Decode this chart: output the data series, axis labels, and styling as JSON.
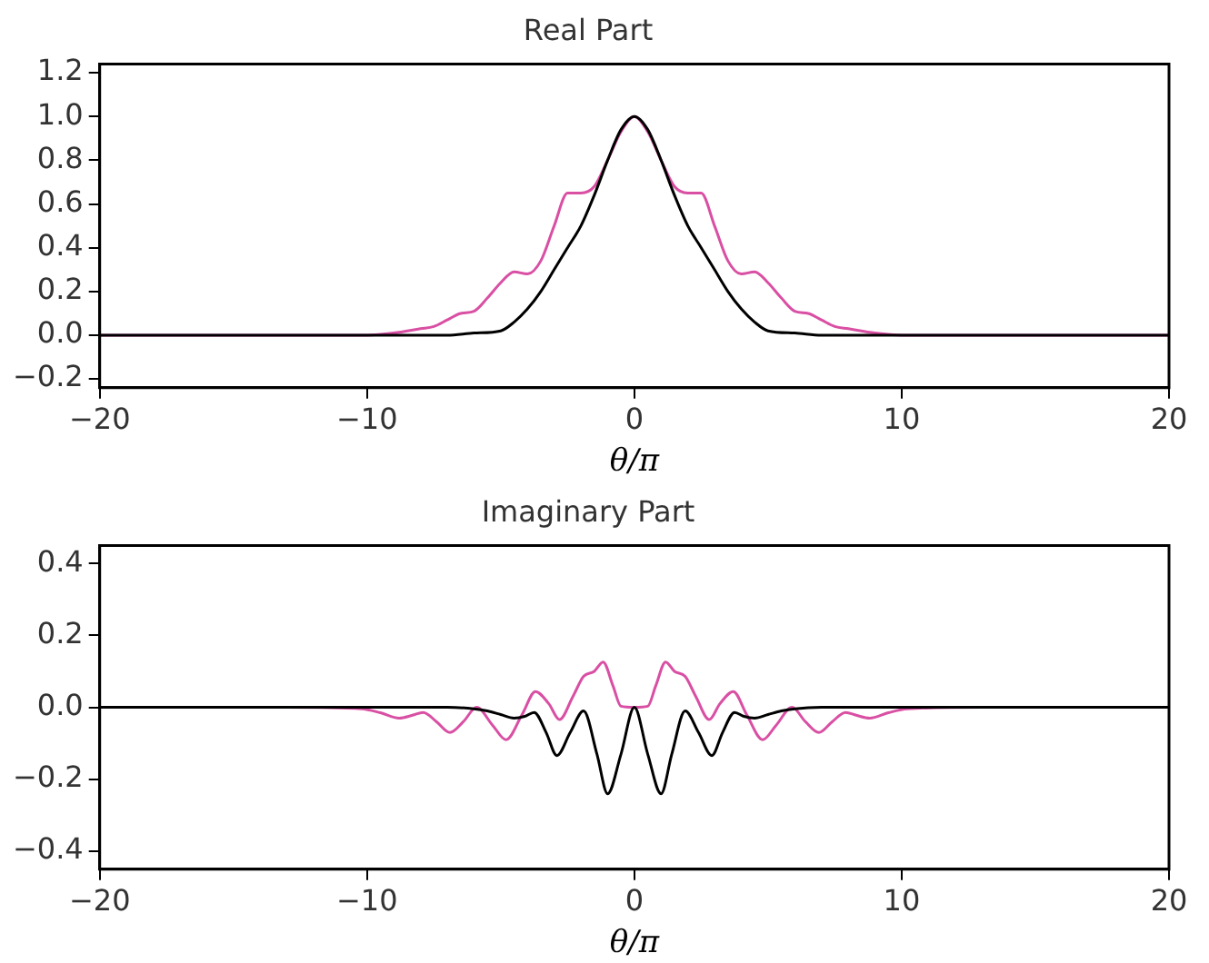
{
  "chart_data": [
    {
      "type": "line",
      "title": "Real Part",
      "xlabel": "θ/π",
      "xlim": [
        -20,
        20
      ],
      "xticks": [
        -20,
        -10,
        0,
        10,
        20
      ],
      "ylim": [
        -0.24,
        1.24
      ],
      "yticks": [
        {
          "value": -0.2,
          "label": "−0.2"
        },
        {
          "value": 0,
          "label": "0.0"
        },
        {
          "value": 0.2,
          "label": "0.2"
        },
        {
          "value": 0.4,
          "label": "0.4"
        },
        {
          "value": 0.6,
          "label": "0.6"
        },
        {
          "value": 0.8,
          "label": "0.8"
        },
        {
          "value": 1,
          "label": "1.0"
        },
        {
          "value": 1.2,
          "label": "1.2"
        }
      ],
      "grid": false,
      "legend": false,
      "marker": "none",
      "line_style": "solid",
      "series": [
        {
          "color": "#000000",
          "x": [
            -20,
            -7,
            -6,
            -5,
            -4.5,
            -4,
            -3.5,
            -3,
            -2.5,
            -2,
            -1.5,
            -1,
            -0.5,
            0,
            0.5,
            1,
            1.5,
            2,
            2.5,
            3,
            3.5,
            4,
            4.5,
            5,
            6,
            7,
            20
          ],
          "values": [
            0,
            0,
            0.01,
            0.02,
            0.06,
            0.12,
            0.2,
            0.3,
            0.4,
            0.5,
            0.64,
            0.8,
            0.94,
            1,
            0.94,
            0.8,
            0.64,
            0.5,
            0.4,
            0.3,
            0.2,
            0.12,
            0.06,
            0.02,
            0.01,
            0,
            0
          ]
        },
        {
          "color": "#d94fa3",
          "x": [
            -20,
            -11,
            -10,
            -9,
            -8,
            -7.5,
            -7,
            -6.5,
            -6,
            -5.5,
            -5,
            -4.5,
            -4,
            -3.5,
            -3,
            -2.5,
            -2,
            -1.5,
            -1,
            -0.5,
            0,
            0.5,
            1,
            1.5,
            2,
            2.5,
            3,
            3.5,
            4,
            4.5,
            5,
            5.5,
            6,
            6.5,
            7,
            7.5,
            8,
            9,
            10,
            11,
            20
          ],
          "values": [
            0,
            0,
            0,
            0.01,
            0.03,
            0.04,
            0.07,
            0.1,
            0.11,
            0.17,
            0.24,
            0.29,
            0.28,
            0.34,
            0.5,
            0.65,
            0.65,
            0.68,
            0.8,
            0.93,
            1,
            0.93,
            0.8,
            0.68,
            0.65,
            0.65,
            0.5,
            0.34,
            0.28,
            0.29,
            0.24,
            0.17,
            0.11,
            0.1,
            0.07,
            0.04,
            0.03,
            0.01,
            0,
            0,
            0
          ]
        }
      ]
    },
    {
      "type": "line",
      "title": "Imaginary Part",
      "xlabel": "θ/π",
      "xlim": [
        -20,
        20
      ],
      "xticks": [
        -20,
        -10,
        0,
        10,
        20
      ],
      "ylim": [
        -0.45,
        0.45
      ],
      "yticks": [
        {
          "value": -0.4,
          "label": "−0.4"
        },
        {
          "value": -0.2,
          "label": "−0.2"
        },
        {
          "value": 0,
          "label": "0.0"
        },
        {
          "value": 0.2,
          "label": "0.2"
        },
        {
          "value": 0.4,
          "label": "0.4"
        }
      ],
      "grid": false,
      "legend": false,
      "marker": "none",
      "line_style": "solid",
      "series": [
        {
          "color": "#000000",
          "x": [
            -20,
            -7,
            -6,
            -5.5,
            -5,
            -4.5,
            -4.1,
            -3.75,
            -3.3,
            -2.9,
            -2.4,
            -1.9,
            -1.4,
            -1,
            -0.5,
            0,
            0.5,
            1,
            1.4,
            1.9,
            2.4,
            2.9,
            3.3,
            3.75,
            4.1,
            4.5,
            5,
            5.5,
            6,
            7,
            20
          ],
          "values": [
            0,
            0,
            -0.004,
            -0.01,
            -0.02,
            -0.03,
            -0.025,
            -0.014,
            -0.07,
            -0.134,
            -0.07,
            -0.01,
            -0.13,
            -0.24,
            -0.13,
            0,
            -0.13,
            -0.24,
            -0.13,
            -0.01,
            -0.07,
            -0.134,
            -0.07,
            -0.014,
            -0.025,
            -0.03,
            -0.02,
            -0.01,
            -0.004,
            0,
            0
          ]
        },
        {
          "color": "#d94fa3",
          "x": [
            -20,
            -13,
            -10.2,
            -9.5,
            -8.8,
            -8.3,
            -7.9,
            -7.4,
            -6.9,
            -6.4,
            -5.9,
            -5.3,
            -4.8,
            -4.2,
            -3.7,
            -3.2,
            -2.8,
            -2.3,
            -1.9,
            -1.5,
            -1.17,
            -0.8,
            -0.5,
            0,
            0.5,
            0.8,
            1.17,
            1.5,
            1.9,
            2.3,
            2.8,
            3.2,
            3.7,
            4.2,
            4.8,
            5.3,
            5.9,
            6.4,
            6.9,
            7.4,
            7.9,
            8.3,
            8.8,
            9.5,
            10.2,
            13,
            20
          ],
          "values": [
            0,
            0,
            -0.004,
            -0.015,
            -0.03,
            -0.022,
            -0.014,
            -0.04,
            -0.07,
            -0.04,
            0,
            -0.05,
            -0.09,
            -0.02,
            0.044,
            0.01,
            -0.034,
            0.03,
            0.086,
            0.1,
            0.126,
            0.06,
            0.003,
            0,
            0.003,
            0.06,
            0.126,
            0.1,
            0.086,
            0.03,
            -0.034,
            0.01,
            0.044,
            -0.02,
            -0.09,
            -0.05,
            0,
            -0.04,
            -0.07,
            -0.04,
            -0.014,
            -0.022,
            -0.03,
            -0.015,
            -0.004,
            0,
            0
          ]
        }
      ]
    }
  ]
}
